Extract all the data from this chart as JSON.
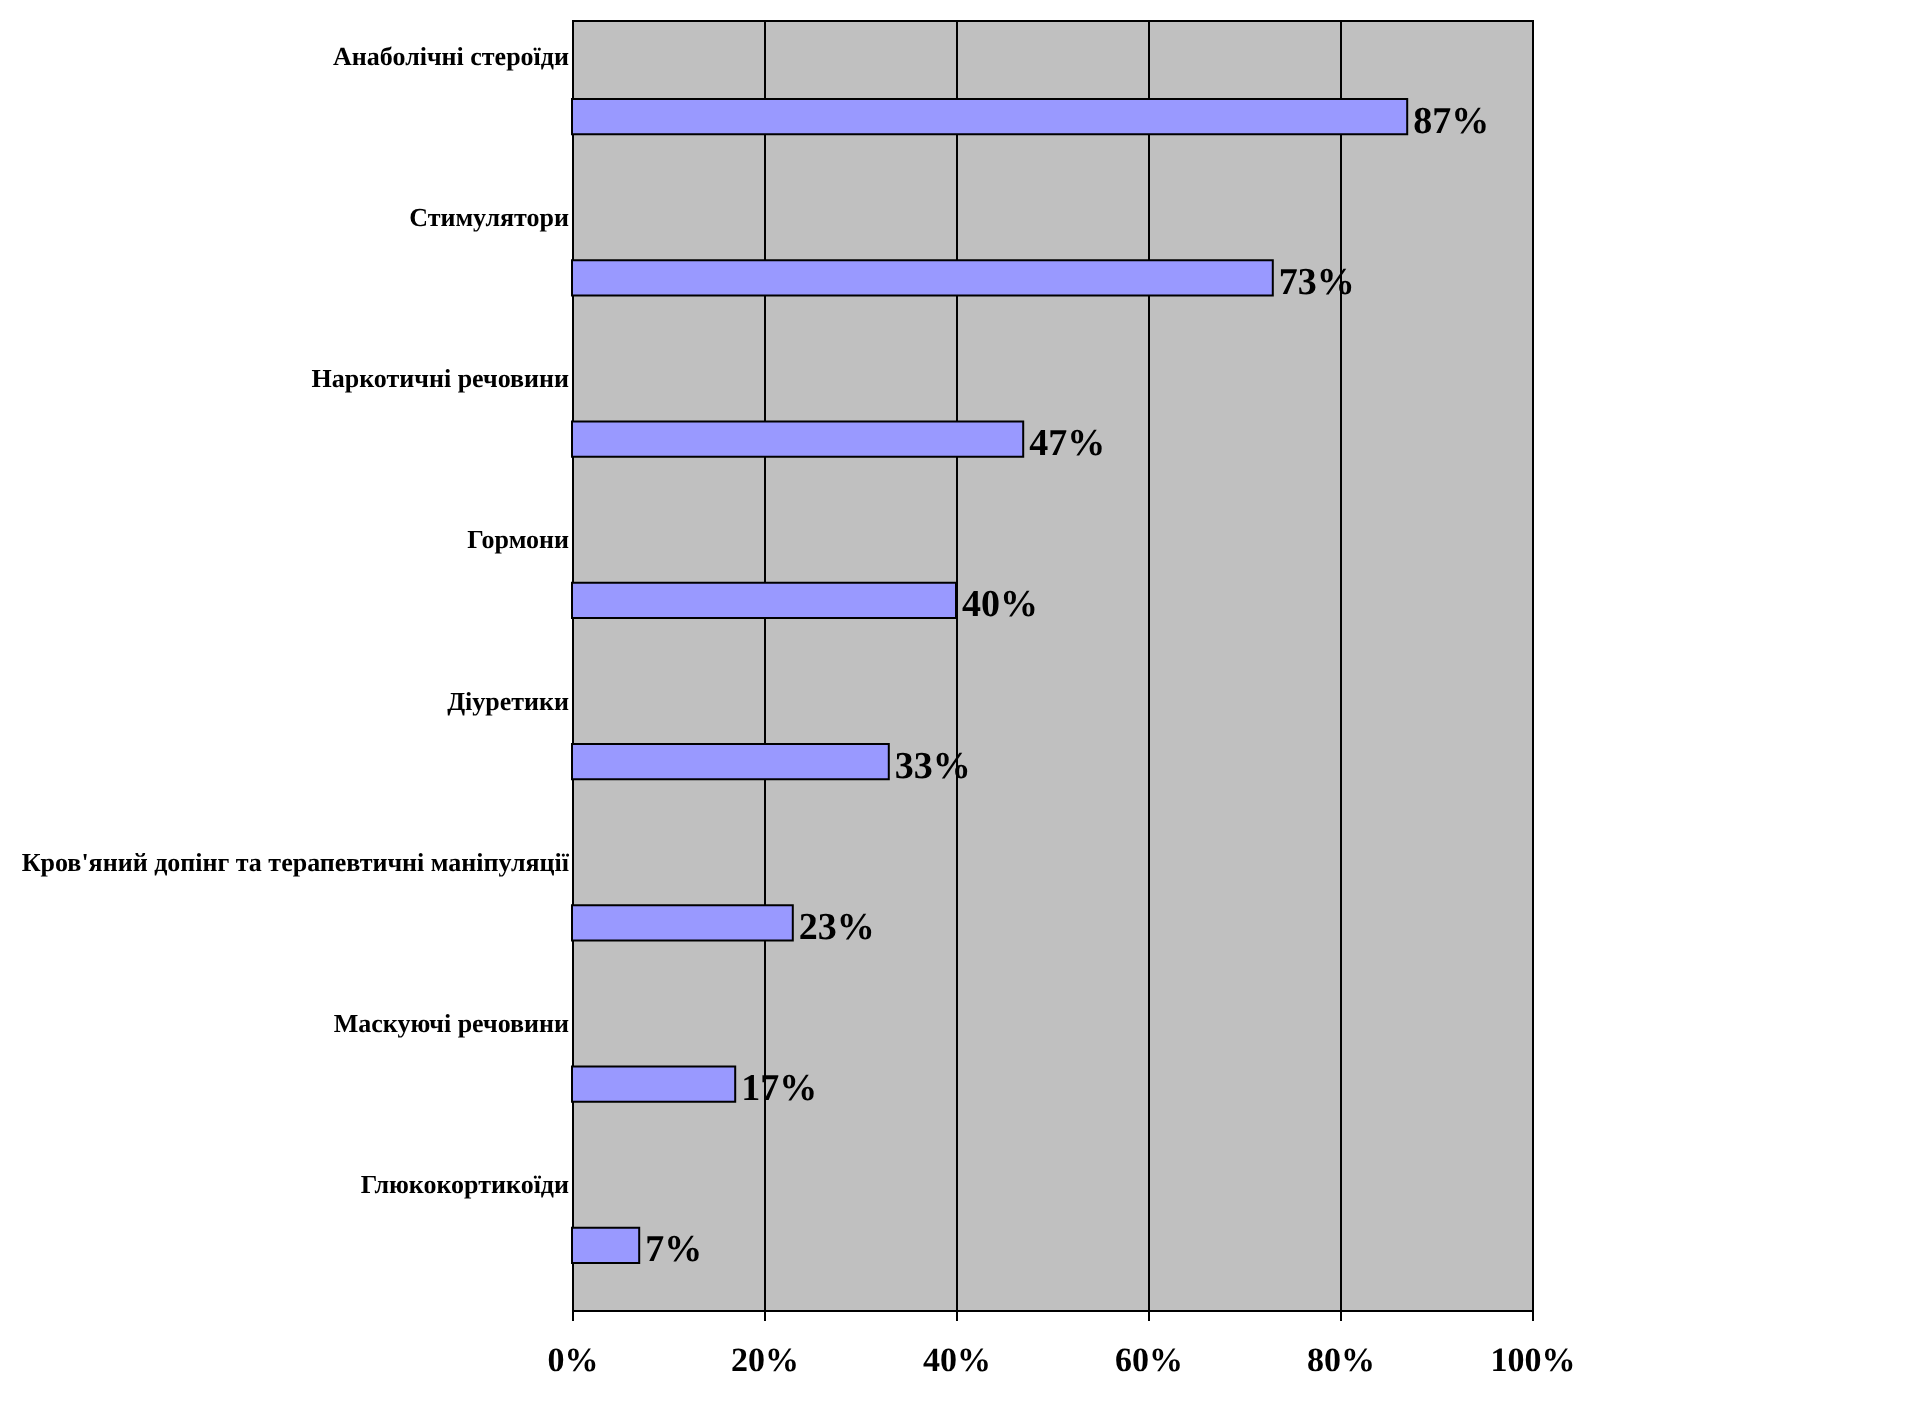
{
  "chart_data": {
    "type": "bar",
    "orientation": "horizontal",
    "categories": [
      "Анаболічні стероїди",
      "Стимулятори",
      "Наркотичні речовини",
      "Гормони",
      "Діуретики",
      "Кров'яний допінг та терапевтичні маніпуляції",
      "Маскуючі речовини",
      "Глюкокортикоїди"
    ],
    "values": [
      87,
      73,
      47,
      40,
      33,
      23,
      17,
      7
    ],
    "value_labels": [
      "87%",
      "73%",
      "47%",
      "40%",
      "33%",
      "23%",
      "17%",
      "7%"
    ],
    "color": "#9999ff",
    "xlim": [
      0,
      100
    ],
    "xticks": [
      {
        "value": 0,
        "label": "0%"
      },
      {
        "value": 20,
        "label": "20%"
      },
      {
        "value": 40,
        "label": "40%"
      },
      {
        "value": 60,
        "label": "60%"
      },
      {
        "value": 80,
        "label": "80%"
      },
      {
        "value": 100,
        "label": "100%"
      }
    ],
    "grid": "x"
  }
}
